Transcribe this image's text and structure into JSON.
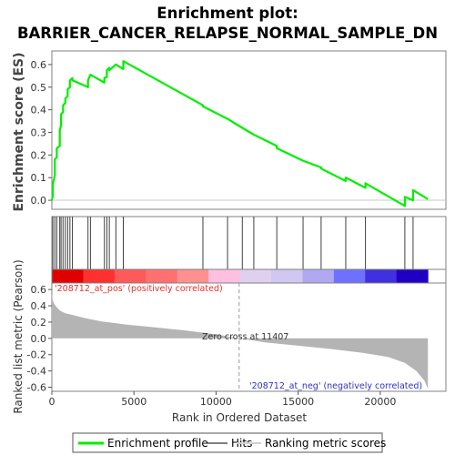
{
  "chart_data": {
    "type": "line",
    "title_line1": "Enrichment plot:",
    "title_line2": "BARRIER_CANCER_RELAPSE_NORMAL_SAMPLE_DN",
    "top_panel": {
      "ylabel": "Enrichment score (ES)",
      "ylim": [
        -0.04,
        0.66
      ],
      "yticks": [
        0.0,
        0.1,
        0.2,
        0.3,
        0.4,
        0.5,
        0.6
      ],
      "ytick_labels": [
        "0.0",
        "0.1",
        "0.2",
        "0.3",
        "0.4",
        "0.5",
        "0.6"
      ],
      "series": [
        {
          "name": "Enrichment profile",
          "color": "#00ee00",
          "x": [
            0,
            60,
            60,
            180,
            180,
            300,
            300,
            480,
            480,
            560,
            560,
            680,
            680,
            820,
            820,
            960,
            960,
            1100,
            1100,
            1250,
            1250,
            2200,
            2200,
            2350,
            2350,
            3200,
            3200,
            3350,
            3350,
            3500,
            3500,
            3900,
            3900,
            4350,
            4350,
            9200,
            9200,
            10700,
            10700,
            11600,
            11600,
            12300,
            12300,
            13700,
            13700,
            15300,
            15300,
            16400,
            16400,
            17900,
            17900,
            19100,
            19100,
            21500,
            21500,
            22000,
            22000,
            22900
          ],
          "y": [
            0.0,
            0.02,
            0.07,
            0.11,
            0.18,
            0.19,
            0.23,
            0.24,
            0.31,
            0.33,
            0.38,
            0.39,
            0.42,
            0.43,
            0.45,
            0.46,
            0.49,
            0.5,
            0.53,
            0.54,
            0.53,
            0.5,
            0.53,
            0.555,
            0.555,
            0.52,
            0.54,
            0.545,
            0.575,
            0.585,
            0.575,
            0.6,
            0.6,
            0.58,
            0.615,
            0.42,
            0.415,
            0.36,
            0.36,
            0.32,
            0.32,
            0.29,
            0.29,
            0.24,
            0.23,
            0.175,
            0.175,
            0.145,
            0.14,
            0.085,
            0.1,
            0.055,
            0.075,
            -0.025,
            0.015,
            0.0,
            0.045,
            0.005
          ]
        }
      ]
    },
    "hits": {
      "name": "Hits",
      "x": [
        60,
        180,
        300,
        480,
        560,
        680,
        820,
        960,
        1100,
        1250,
        2200,
        2350,
        3200,
        3350,
        3500,
        3900,
        4350,
        9200,
        10700,
        11600,
        12300,
        13700,
        15300,
        16400,
        17900,
        19100,
        21500,
        22000
      ]
    },
    "heat_bar": {
      "colors": [
        "#e00000",
        "#ff3030",
        "#ff5a5a",
        "#ff7070",
        "#ff9090",
        "#ffc0e0",
        "#e0d0f0",
        "#d0c8f0",
        "#b0a8f0",
        "#7070ff",
        "#4030e0",
        "#2000c0"
      ]
    },
    "bottom_panel": {
      "ylabel": "Ranked list metric (Pearson)",
      "ylim": [
        -0.65,
        0.68
      ],
      "yticks": [
        0.6,
        0.4,
        0.2,
        0.0,
        -0.2,
        -0.4,
        -0.6
      ],
      "ytick_labels": [
        "0.6",
        "0.4",
        "0.2",
        "0.0",
        "-0.2",
        "-0.4",
        "-0.6"
      ],
      "fill_color": "#b4b4b4",
      "metric_x": [
        0,
        50,
        150,
        300,
        500,
        800,
        1200,
        2000,
        3000,
        4500,
        6000,
        8000,
        10000,
        11407,
        13000,
        15000,
        17000,
        19000,
        20500,
        21500,
        22200,
        22700,
        22900
      ],
      "metric_y": [
        0.55,
        0.47,
        0.42,
        0.38,
        0.34,
        0.31,
        0.29,
        0.25,
        0.21,
        0.17,
        0.14,
        0.1,
        0.05,
        0.0,
        -0.05,
        -0.09,
        -0.13,
        -0.18,
        -0.23,
        -0.3,
        -0.4,
        -0.52,
        -0.62
      ],
      "zero_cross_x": 11407,
      "zero_cross_label": "Zero cross at 11407",
      "pos_label": "'208712_at_pos' (positively correlated)",
      "neg_label": "'208712_at_neg' (negatively correlated)"
    },
    "xaxis": {
      "xlabel": "Rank in Ordered Dataset",
      "xlim": [
        0,
        24000
      ],
      "xticks": [
        0,
        5000,
        10000,
        15000,
        20000
      ],
      "xtick_labels": [
        "0",
        "5000",
        "10000",
        "15000",
        "20000"
      ],
      "max_rank": 22900
    },
    "legend": {
      "position": "bottom",
      "items": [
        {
          "label": "Enrichment profile",
          "color": "#00ee00"
        },
        {
          "label": "Hits",
          "color": "#808080"
        },
        {
          "label": "Ranking metric scores",
          "color": "#d0d0d0"
        }
      ]
    }
  }
}
